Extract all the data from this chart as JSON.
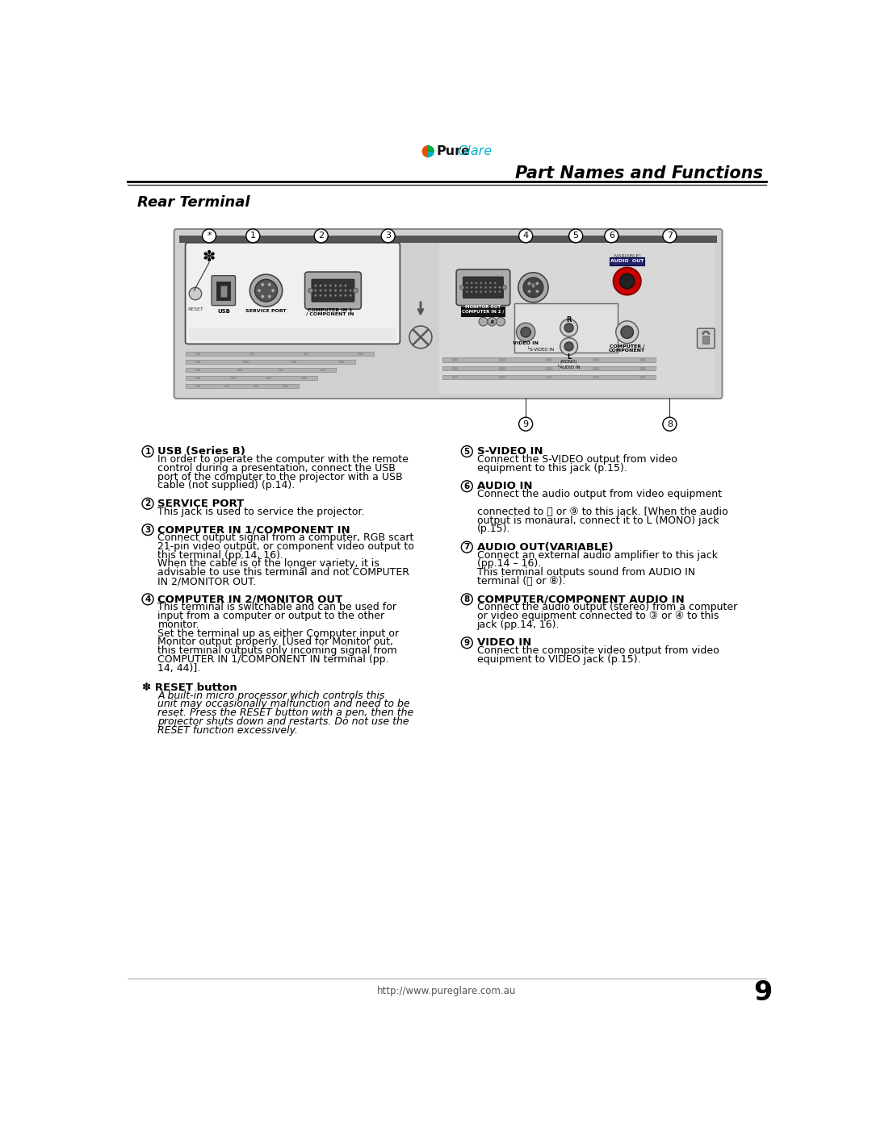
{
  "title": "Part Names and Functions",
  "section_title": "Rear Terminal",
  "footer_url": "http://www.pureglare.com.au",
  "page_number": "9",
  "bg_color": "#ffffff",
  "items_left": [
    {
      "num": "1",
      "title": "USB (Series B)",
      "body": "In order to operate the computer with the remote\ncontrol during a presentation, connect the USB\nport of the computer to the projector with a USB\ncable (not supplied) (p.14)."
    },
    {
      "num": "2",
      "title": "SERVICE PORT",
      "body": "This jack is used to service the projector."
    },
    {
      "num": "3",
      "title": "COMPUTER IN 1/COMPONENT IN",
      "body": "Connect output signal from a computer, RGB scart\n21-pin video output, or component video output to\nthis terminal (pp.14, 16).\nWhen the cable is of the longer variety, it is\nadvisable to use this terminal and not COMPUTER\nIN 2/MONITOR OUT."
    },
    {
      "num": "4",
      "title": "COMPUTER IN 2/MONITOR OUT",
      "body": "This terminal is switchable and can be used for\ninput from a computer or output to the other\nmonitor.\nSet the terminal up as either Computer input or\nMonitor output properly. [Used for Monitor out,\nthis terminal outputs only incoming signal from\nCOMPUTER IN 1/COMPONENT IN terminal (pp.\n14, 44)]."
    }
  ],
  "items_right": [
    {
      "num": "5",
      "title": "S-VIDEO IN",
      "body": "Connect the S-VIDEO output from video\nequipment to this jack (p.15)."
    },
    {
      "num": "6",
      "title": "AUDIO IN",
      "body": "Connect the audio output from video equipment\n\nconnected to ⓤ or ⑨ to this jack. [When the audio\noutput is monaural, connect it to L (MONO) jack\n(p.15)."
    },
    {
      "num": "7",
      "title": "AUDIO OUT(VARIABLE)",
      "body": "Connect an external audio amplifier to this jack\n(pp.14 – 16).\nThis terminal outputs sound from AUDIO IN\nterminal (ⓥ or ⑧)."
    },
    {
      "num": "8",
      "title": "COMPUTER/COMPONENT AUDIO IN",
      "body": "Connect the audio output (stereo) from a computer\nor video equipment connected to ③ or ④ to this\njack (pp.14, 16)."
    },
    {
      "num": "9",
      "title": "VIDEO IN",
      "body": "Connect the composite video output from video\nequipment to VIDEO jack (p.15)."
    }
  ],
  "reset_title": "RESET button",
  "reset_body": "A built-in micro processor which controls this\nunit may occasionally malfunction and need to be\nreset. Press the RESET button with a pen, then the\nprojector shuts down and restarts. Do not use the\nRESET function excessively."
}
